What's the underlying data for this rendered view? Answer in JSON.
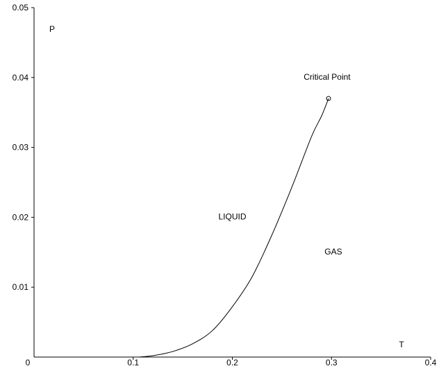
{
  "chart_data": {
    "type": "line",
    "title": "",
    "xlabel": "T",
    "ylabel": "P",
    "xlim": [
      0,
      0.4
    ],
    "ylim": [
      0,
      0.05
    ],
    "x_ticks": [
      {
        "value": 0,
        "label": "0"
      },
      {
        "value": 0.1,
        "label": "0.1"
      },
      {
        "value": 0.2,
        "label": "0.2"
      },
      {
        "value": 0.3,
        "label": "0.3"
      },
      {
        "value": 0.4,
        "label": "0.4"
      }
    ],
    "y_ticks": [
      {
        "value": 0.01,
        "label": "0.01"
      },
      {
        "value": 0.02,
        "label": "0.02"
      },
      {
        "value": 0.03,
        "label": "0.03"
      },
      {
        "value": 0.04,
        "label": "0.04"
      },
      {
        "value": 0.05,
        "label": "0.05"
      }
    ],
    "grid": false,
    "series": [
      {
        "x": [
          0.105,
          0.12,
          0.14,
          0.16,
          0.18,
          0.2,
          0.22,
          0.24,
          0.26,
          0.28,
          0.29,
          0.297
        ],
        "y": [
          0.0,
          0.0002,
          0.0008,
          0.0019,
          0.0038,
          0.0072,
          0.0115,
          0.0175,
          0.0243,
          0.0316,
          0.0345,
          0.037
        ]
      }
    ],
    "critical_point": {
      "x": 0.297,
      "y": 0.037
    },
    "annotations": [
      {
        "text": "Critical Point",
        "x": 0.272,
        "y": 0.0397
      },
      {
        "text": "LIQUID",
        "x": 0.186,
        "y": 0.0197
      },
      {
        "text": "GAS",
        "x": 0.293,
        "y": 0.0147
      }
    ]
  }
}
